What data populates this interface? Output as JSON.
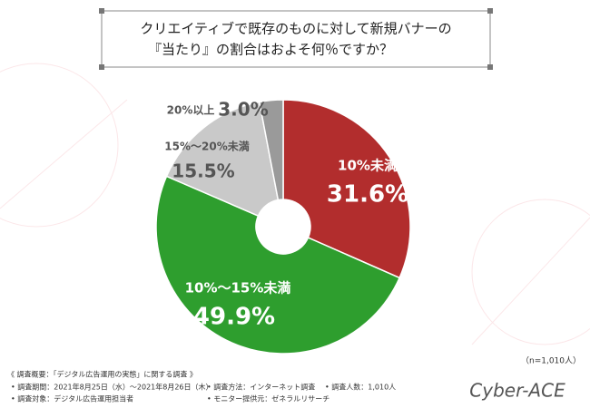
{
  "chart_data": {
    "type": "pie",
    "title_lines": [
      "クリエイティブで既存のものに対して新規バナーの",
      "『当たり』の割合はおよそ何％ですか？"
    ],
    "categories": [
      "10%未満",
      "10%〜15%未満",
      "15%〜20%未満",
      "20%以上"
    ],
    "values": [
      31.6,
      49.9,
      15.5,
      3.0
    ],
    "value_labels": [
      "31.6%",
      "49.9%",
      "15.5%",
      "3.0%"
    ],
    "colors": [
      "#b22d2d",
      "#2e9e2e",
      "#c9c9c9",
      "#9a9a9a"
    ],
    "sample_note": "（n=1,010人）"
  },
  "footer": {
    "heading": "《 調査概要：「デジタル広告運用の実態」に関する調査 》",
    "items": [
      "• 調査期間：2021年8月25日（水）〜2021年8月26日（木）",
      "• 調査方法：インターネット調査",
      "• 調査人数：1,010人",
      "• 調査対象：デジタル広告運用担当者",
      "• モニター提供元：ゼネラルリサーチ"
    ],
    "logo": "Cyber-ACE"
  }
}
